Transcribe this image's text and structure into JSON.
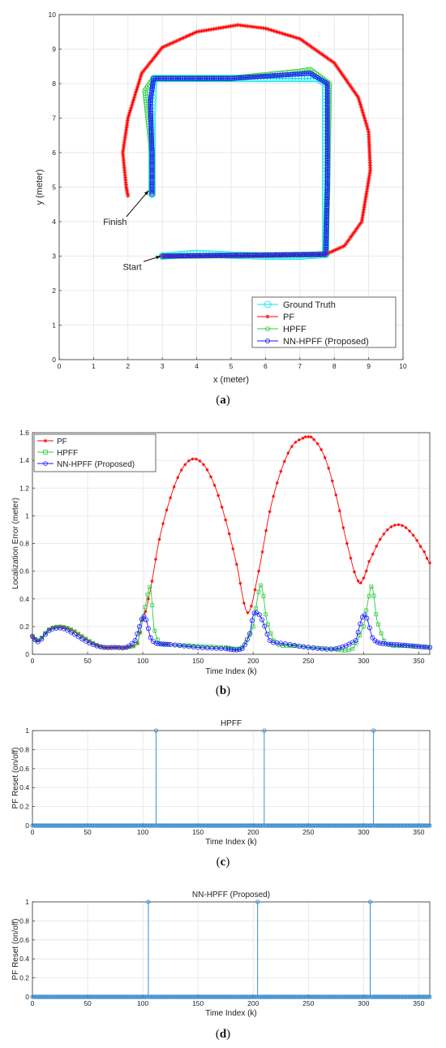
{
  "captions": [
    {
      "open": "(",
      "letter": "a",
      "close": ")"
    },
    {
      "open": "(",
      "letter": "b",
      "close": ")"
    },
    {
      "open": "(",
      "letter": "c",
      "close": ")"
    },
    {
      "open": "(",
      "letter": "d",
      "close": ")"
    }
  ],
  "colors": {
    "ground_truth": "#00e5ee",
    "pf": "#ff0000",
    "hpff": "#2ecc40",
    "nn_hpff": "#1a1aff",
    "stem": "#3a8fd1",
    "grid": "#e3e3e3"
  },
  "chart_data": [
    {
      "type": "scatter",
      "title": "",
      "xlabel": "x (meter)",
      "ylabel": "y (meter)",
      "xlim": [
        0,
        10
      ],
      "ylim": [
        0,
        10
      ],
      "xticks": [
        "0",
        "1",
        "2",
        "3",
        "4",
        "5",
        "6",
        "7",
        "8",
        "9",
        "10"
      ],
      "yticks": [
        "0",
        "1",
        "2",
        "3",
        "4",
        "5",
        "6",
        "7",
        "8",
        "9",
        "10"
      ],
      "grid": true,
      "legend_position": "bottom-right",
      "series": [
        {
          "name": "Ground Truth",
          "marker": "circle",
          "points": [
            [
              3.0,
              3.0
            ],
            [
              4.0,
              3.08
            ],
            [
              5.0,
              3.03
            ],
            [
              6.0,
              3.0
            ],
            [
              7.0,
              3.0
            ],
            [
              7.75,
              3.05
            ],
            [
              7.75,
              4.0
            ],
            [
              7.75,
              5.0
            ],
            [
              7.75,
              6.0
            ],
            [
              7.75,
              7.0
            ],
            [
              7.75,
              8.0
            ],
            [
              7.5,
              8.15
            ],
            [
              6.5,
              8.15
            ],
            [
              5.5,
              8.15
            ],
            [
              4.5,
              8.15
            ],
            [
              3.5,
              8.15
            ],
            [
              2.75,
              8.15
            ],
            [
              2.7,
              7.0
            ],
            [
              2.7,
              6.0
            ],
            [
              2.7,
              4.8
            ]
          ]
        },
        {
          "name": "PF",
          "marker": "star",
          "points": [
            [
              3.0,
              3.0
            ],
            [
              6.0,
              3.0
            ],
            [
              7.75,
              3.05
            ],
            [
              8.3,
              3.3
            ],
            [
              8.8,
              4.0
            ],
            [
              9.05,
              5.5
            ],
            [
              9.0,
              6.6
            ],
            [
              8.7,
              7.6
            ],
            [
              8.0,
              8.6
            ],
            [
              7.0,
              9.3
            ],
            [
              6.0,
              9.6
            ],
            [
              5.2,
              9.7
            ],
            [
              4.0,
              9.5
            ],
            [
              3.0,
              9.05
            ],
            [
              2.4,
              8.3
            ],
            [
              2.0,
              7.0
            ],
            [
              1.85,
              6.0
            ],
            [
              1.95,
              5.0
            ],
            [
              2.0,
              4.75
            ]
          ]
        },
        {
          "name": "HPFF",
          "marker": "circle",
          "points": [
            [
              3.0,
              3.0
            ],
            [
              7.75,
              3.05
            ],
            [
              7.8,
              5.0
            ],
            [
              7.85,
              8.0
            ],
            [
              7.3,
              8.4
            ],
            [
              7.0,
              8.35
            ],
            [
              5.0,
              8.15
            ],
            [
              2.75,
              8.15
            ],
            [
              2.5,
              7.8
            ],
            [
              2.7,
              6.0
            ],
            [
              2.7,
              4.8
            ]
          ]
        },
        {
          "name": "NN-HPFF (Proposed)",
          "marker": "circle",
          "points": [
            [
              3.0,
              3.0
            ],
            [
              7.75,
              3.05
            ],
            [
              7.8,
              5.0
            ],
            [
              7.8,
              8.0
            ],
            [
              7.3,
              8.3
            ],
            [
              5.0,
              8.15
            ],
            [
              2.75,
              8.15
            ],
            [
              2.65,
              7.5
            ],
            [
              2.7,
              6.0
            ],
            [
              2.7,
              4.8
            ]
          ]
        }
      ],
      "annotations": [
        {
          "text": "Finish",
          "x": 1.2,
          "y": 4.0,
          "arrow_to": [
            2.6,
            4.9
          ]
        },
        {
          "text": "Start",
          "x": 1.7,
          "y": 2.7,
          "arrow_to": [
            2.95,
            3.0
          ]
        }
      ]
    },
    {
      "type": "line",
      "title": "",
      "xlabel": "Time Index (k)",
      "ylabel": "Localization Error (meter)",
      "xlim": [
        0,
        360
      ],
      "ylim": [
        0,
        1.6
      ],
      "xticks": [
        "0",
        "50",
        "100",
        "150",
        "200",
        "250",
        "300",
        "350"
      ],
      "yticks": [
        "0",
        "0.2",
        "0.4",
        "0.6",
        "0.8",
        "1",
        "1.2",
        "1.4",
        "1.6"
      ],
      "grid": true,
      "legend_position": "top-left",
      "series": [
        {
          "name": "PF",
          "marker": "star",
          "x": [
            0,
            5,
            15,
            25,
            35,
            45,
            55,
            65,
            75,
            85,
            95,
            100,
            105,
            115,
            125,
            135,
            145,
            155,
            165,
            175,
            185,
            195,
            205,
            215,
            225,
            235,
            245,
            250,
            255,
            265,
            275,
            285,
            295,
            300,
            305,
            315,
            325,
            335,
            345,
            355,
            360
          ],
          "y": [
            0.13,
            0.1,
            0.18,
            0.2,
            0.18,
            0.13,
            0.08,
            0.05,
            0.05,
            0.05,
            0.08,
            0.25,
            0.4,
            0.83,
            1.13,
            1.33,
            1.41,
            1.37,
            1.22,
            0.97,
            0.65,
            0.3,
            0.6,
            1.03,
            1.32,
            1.5,
            1.56,
            1.57,
            1.55,
            1.42,
            1.15,
            0.8,
            0.53,
            0.55,
            0.67,
            0.83,
            0.92,
            0.93,
            0.86,
            0.74,
            0.66
          ]
        },
        {
          "name": "HPFF",
          "marker": "square",
          "x": [
            0,
            5,
            15,
            25,
            35,
            45,
            55,
            65,
            75,
            85,
            95,
            100,
            103,
            107,
            110,
            115,
            125,
            150,
            175,
            190,
            200,
            205,
            208,
            212,
            220,
            240,
            270,
            290,
            300,
            305,
            308,
            312,
            320,
            340,
            360
          ],
          "y": [
            0.13,
            0.1,
            0.18,
            0.2,
            0.18,
            0.13,
            0.08,
            0.05,
            0.05,
            0.05,
            0.08,
            0.25,
            0.38,
            0.48,
            0.2,
            0.08,
            0.07,
            0.06,
            0.05,
            0.05,
            0.2,
            0.45,
            0.48,
            0.25,
            0.08,
            0.06,
            0.04,
            0.04,
            0.2,
            0.42,
            0.48,
            0.25,
            0.08,
            0.06,
            0.05
          ]
        },
        {
          "name": "NN-HPFF (Proposed)",
          "marker": "circle",
          "x": [
            0,
            5,
            15,
            25,
            35,
            45,
            55,
            65,
            75,
            85,
            93,
            97,
            100,
            103,
            107,
            112,
            125,
            150,
            175,
            190,
            197,
            200,
            203,
            208,
            215,
            225,
            250,
            275,
            293,
            297,
            300,
            303,
            308,
            315,
            330,
            345,
            360
          ],
          "y": [
            0.13,
            0.09,
            0.17,
            0.19,
            0.16,
            0.11,
            0.07,
            0.05,
            0.05,
            0.05,
            0.1,
            0.2,
            0.27,
            0.25,
            0.12,
            0.08,
            0.07,
            0.05,
            0.04,
            0.04,
            0.15,
            0.28,
            0.3,
            0.25,
            0.1,
            0.08,
            0.05,
            0.04,
            0.1,
            0.22,
            0.28,
            0.26,
            0.12,
            0.08,
            0.07,
            0.06,
            0.05
          ]
        }
      ]
    },
    {
      "type": "stem",
      "title": "HPFF",
      "xlabel": "Time Index (k)",
      "ylabel": "PF Reset (on/off)",
      "xlim": [
        0,
        360
      ],
      "ylim": [
        0,
        1
      ],
      "xticks": [
        "0",
        "50",
        "100",
        "150",
        "200",
        "250",
        "300",
        "350"
      ],
      "yticks": [
        "0",
        "0.2",
        "0.4",
        "0.6",
        "0.8",
        "1"
      ],
      "grid": true,
      "n_points": 361,
      "reset_indices": [
        112,
        210,
        309
      ]
    },
    {
      "type": "stem",
      "title": "NN-HPFF (Proposed)",
      "xlabel": "Time Index (k)",
      "ylabel": "PF Reset (on/off)",
      "xlim": [
        0,
        360
      ],
      "ylim": [
        0,
        1
      ],
      "xticks": [
        "0",
        "50",
        "100",
        "150",
        "200",
        "250",
        "300",
        "350"
      ],
      "yticks": [
        "0",
        "0.2",
        "0.4",
        "0.6",
        "0.8",
        "1"
      ],
      "grid": true,
      "n_points": 361,
      "reset_indices": [
        105,
        204,
        306
      ]
    }
  ]
}
